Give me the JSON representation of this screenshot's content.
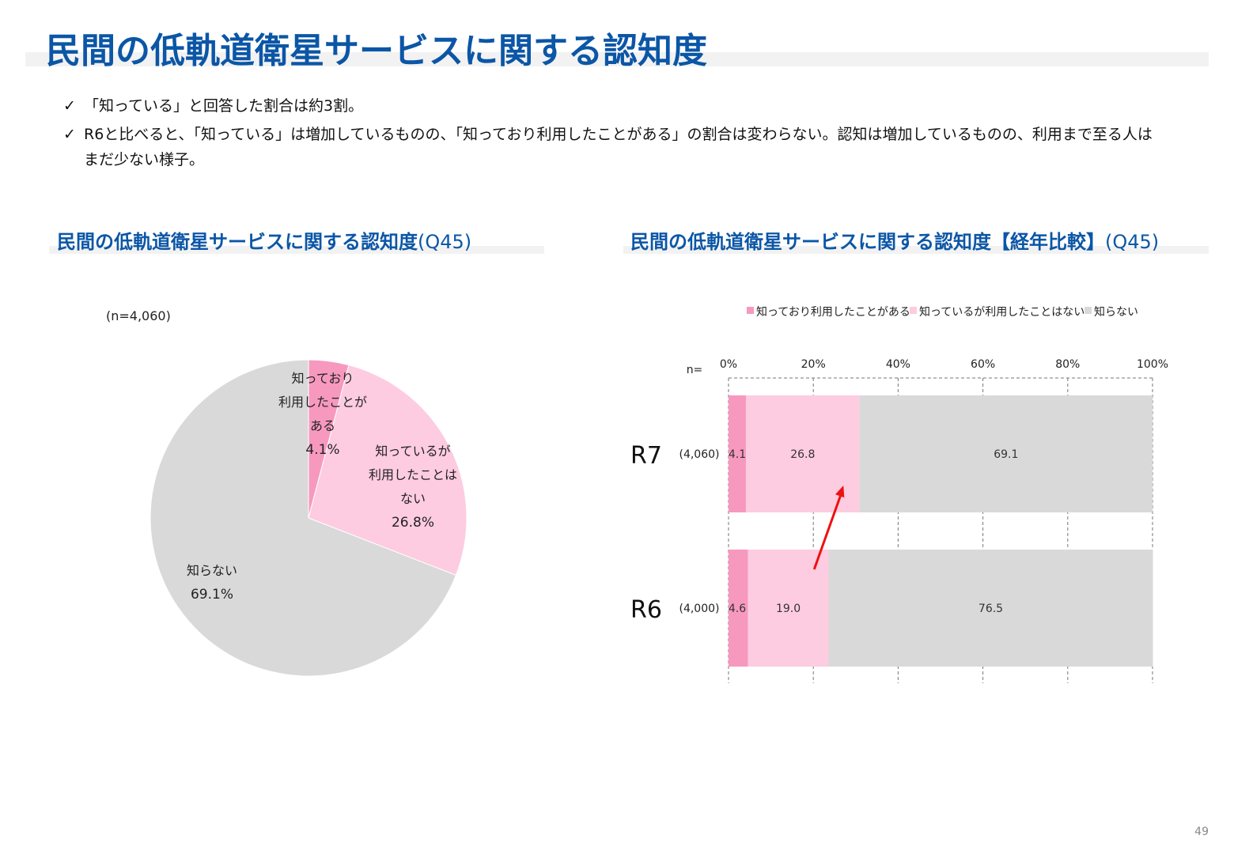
{
  "title": "民間の低軌道衛星サービスに関する認知度",
  "bullets": [
    "「知っている」と回答した割合は約3割。",
    "R6と比べると、「知っている」は増加しているものの、「知っており利用したことがある」の割合は変わらない。認知は増加しているものの、利用まで至る人はまだ少ない様子。"
  ],
  "check_glyph": "✓",
  "left_section": {
    "title": "民間の低軌道衛星サービスに関する認知度",
    "q": "(Q45)"
  },
  "right_section": {
    "title": "民間の低軌道衛星サービスに関する認知度【経年比較】",
    "q": "(Q45)"
  },
  "page_number": "49",
  "colors": {
    "title_blue": "#0b56a6",
    "dark_pink": "#f799bf",
    "light_pink": "#fdcce0",
    "gray": "#d9d9d9",
    "arrow": "#ee1111"
  },
  "chart_data": [
    {
      "type": "pie",
      "n_label": "(n=4,060)",
      "slices": [
        {
          "label_lines": [
            "知っており",
            "利用したことが",
            "ある"
          ],
          "value": 4.1,
          "value_label": "4.1%",
          "color": "#f799bf"
        },
        {
          "label_lines": [
            "知っているが",
            "利用したことは",
            "ない"
          ],
          "value": 26.8,
          "value_label": "26.8%",
          "color": "#fdcce0"
        },
        {
          "label_lines": [
            "知らない"
          ],
          "value": 69.1,
          "value_label": "69.1%",
          "color": "#d9d9d9"
        }
      ]
    },
    {
      "type": "bar",
      "stacked": true,
      "orientation": "horizontal",
      "n_header": "n=",
      "legend": [
        "知っており利用したことがある",
        "知っているが利用したことはない",
        "知らない"
      ],
      "legend_position": "top",
      "xlim": [
        0,
        100
      ],
      "x_ticks": [
        "0%",
        "20%",
        "40%",
        "60%",
        "80%",
        "100%"
      ],
      "categories": [
        "R7",
        "R6"
      ],
      "n_values": [
        "(4,060)",
        "(4,000)"
      ],
      "series": [
        {
          "name": "知っており利用したことがある",
          "values": [
            4.1,
            4.6
          ],
          "labels": [
            "4.1",
            "4.6"
          ]
        },
        {
          "name": "知っているが利用したことはない",
          "values": [
            26.8,
            19.0
          ],
          "labels": [
            "26.8",
            "19.0"
          ]
        },
        {
          "name": "知らない",
          "values": [
            69.1,
            76.5
          ],
          "labels": [
            "69.1",
            "76.5"
          ]
        }
      ],
      "annotation": "red arrow from R6 to R7 (increase in 知っているが利用したことはない)"
    }
  ]
}
